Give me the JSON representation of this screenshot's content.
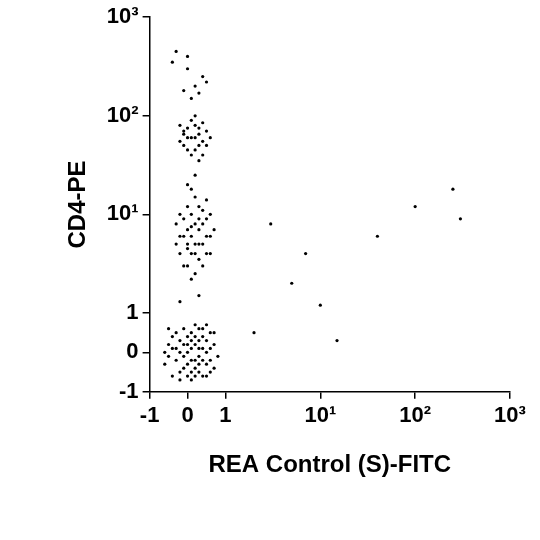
{
  "chart_data": {
    "type": "scatter",
    "x_label": "REA Control (S)-FITC",
    "y_label": "CD4-PE",
    "color": "#000000",
    "marker": "dot",
    "grid": false,
    "log": true,
    "xlim": [
      -1,
      1000
    ],
    "ylim": [
      -1,
      1000
    ],
    "xticks": [
      -1,
      0,
      1,
      {
        "value": 10,
        "label": "10¹"
      },
      {
        "value": 100,
        "label": "10²"
      },
      {
        "value": 1000,
        "label": "10³"
      }
    ],
    "yticks": [
      -1,
      0,
      1,
      {
        "value": 10,
        "label": "10¹"
      },
      {
        "value": 100,
        "label": "10²"
      },
      {
        "value": 1000,
        "label": "10³"
      }
    ],
    "x": [
      -0.4,
      0.1,
      0.3,
      -0.2,
      0.5,
      0.0,
      0.2,
      -0.5,
      0.6,
      0.4,
      -0.1,
      0.1,
      0.3,
      -0.3,
      0.7,
      0.2,
      -0.6,
      0.0,
      0.5,
      -0.2,
      0.4,
      0.1,
      0.6,
      -0.4,
      0.3,
      -0.1,
      0.2,
      0.0,
      0.4,
      -0.3,
      0.8,
      0.5,
      -0.5,
      0.1,
      0.3,
      -0.2,
      0.6,
      0.2,
      -0.4,
      0.0,
      0.7,
      0.4,
      -0.1,
      0.2,
      0.5,
      -0.3,
      0.1,
      0.3,
      -0.6,
      0.6,
      0.0,
      0.4,
      -0.2,
      0.2,
      0.7,
      -0.5,
      0.1,
      0.3,
      0.5,
      -0.1,
      0.2,
      0.0,
      0.4,
      -0.2,
      0.3,
      0.1,
      0.5,
      -0.1,
      0.6,
      0.2,
      0.0,
      0.4,
      -0.3,
      0.3,
      0.1,
      0.5,
      -0.1,
      0.2,
      0.7,
      0.0,
      0.4,
      -0.2,
      0.3,
      0.1,
      0.6,
      -0.3,
      0.2,
      0.5,
      0.0,
      0.3,
      -0.1,
      0.4,
      0.1,
      0.2,
      0.6,
      -0.2,
      0.3,
      0.0,
      0.5,
      0.1,
      0.1,
      0.3,
      -0.1,
      0.2,
      0.4,
      0.0,
      0.3,
      -0.2,
      0.5,
      0.1,
      0.2,
      0.4,
      -0.1,
      0.3,
      0.0,
      0.2,
      0.5,
      -0.2,
      0.1,
      0.3,
      0.0,
      0.4,
      0.2,
      -0.1,
      0.6,
      -0.3,
      0.0,
      0.2,
      -0.1,
      0.4,
      0.1,
      -0.4,
      0.3,
      0.5,
      0.0,
      0.2,
      0.0,
      0.3,
      -0.2,
      0.1,
      3,
      5,
      10,
      2,
      40,
      100,
      300,
      15,
      7,
      250
    ],
    "values": [
      0.1,
      -0.2,
      0.3,
      -0.5,
      0.0,
      0.4,
      -0.4,
      0.2,
      0.5,
      -0.6,
      0.6,
      0.1,
      -0.1,
      -0.2,
      0.2,
      0.7,
      -0.3,
      -0.6,
      -0.3,
      0.3,
      0.4,
      -0.7,
      -0.5,
      -0.6,
      0.6,
      -0.1,
      0.2,
      0.0,
      0.1,
      0.5,
      -0.1,
      0.7,
      -0.1,
      0.5,
      -0.5,
      0.0,
      -0.2,
      -0.2,
      0.4,
      0.2,
      -0.4,
      -0.2,
      -0.4,
      0.4,
      0.3,
      0.1,
      -0.5,
      0.1,
      0.0,
      0.1,
      -0.3,
      0.6,
      -0.7,
      -0.6,
      0.5,
      0.6,
      0.3,
      -0.3,
      -0.6,
      0.2,
      5,
      3,
      8,
      6,
      12,
      4,
      6,
      9,
      4,
      15,
      7,
      3,
      5,
      5,
      10,
      9,
      3,
      2.5,
      7,
      12,
      5,
      4,
      7,
      6,
      10,
      8,
      8,
      4,
      5,
      3.5,
      6,
      11,
      2.2,
      4,
      6,
      10,
      9,
      4.5,
      14,
      7.5,
      60,
      50,
      70,
      80,
      55,
      45,
      65,
      55,
      70,
      40,
      100,
      85,
      50,
      35,
      75,
      60,
      50,
      80,
      90,
      75,
      60,
      40,
      45,
      65,
      60,
      450,
      300,
      200,
      180,
      250,
      150,
      350,
      170,
      220,
      400,
      25,
      20,
      1.5,
      1.3,
      18,
      8,
      2,
      1.2,
      0.5,
      6,
      12,
      9,
      0.3,
      4,
      18
    ]
  }
}
